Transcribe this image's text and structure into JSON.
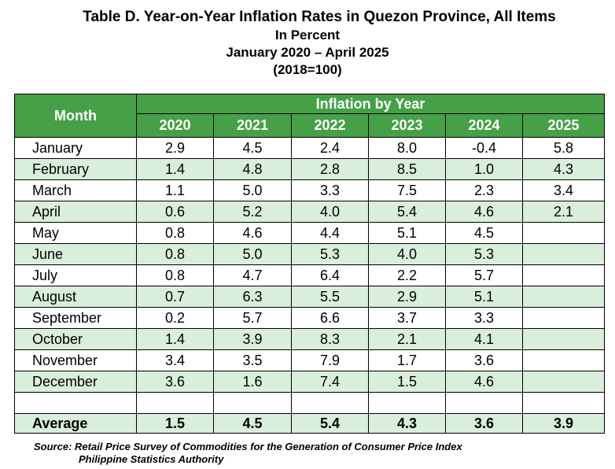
{
  "title": {
    "line1": "Table D. Year-on-Year Inflation Rates in Quezon Province, All Items",
    "line2": "In Percent",
    "line3": "January 2020 – April 2025",
    "line4": "(2018=100)"
  },
  "table": {
    "month_header": "Month",
    "group_header": "Inflation by Year",
    "years": [
      "2020",
      "2021",
      "2022",
      "2023",
      "2024",
      "2025"
    ],
    "rows": [
      {
        "month": "January",
        "values": [
          "2.9",
          "4.5",
          "2.4",
          "8.0",
          "-0.4",
          "5.8"
        ]
      },
      {
        "month": "February",
        "values": [
          "1.4",
          "4.8",
          "2.8",
          "8.5",
          "1.0",
          "4.3"
        ]
      },
      {
        "month": "March",
        "values": [
          "1.1",
          "5.0",
          "3.3",
          "7.5",
          "2.3",
          "3.4"
        ]
      },
      {
        "month": "April",
        "values": [
          "0.6",
          "5.2",
          "4.0",
          "5.4",
          "4.6",
          "2.1"
        ]
      },
      {
        "month": "May",
        "values": [
          "0.8",
          "4.6",
          "4.4",
          "5.1",
          "4.5",
          ""
        ]
      },
      {
        "month": "June",
        "values": [
          "0.8",
          "5.0",
          "5.3",
          "4.0",
          "5.3",
          ""
        ]
      },
      {
        "month": "July",
        "values": [
          "0.8",
          "4.7",
          "6.4",
          "2.2",
          "5.7",
          ""
        ]
      },
      {
        "month": "August",
        "values": [
          "0.7",
          "6.3",
          "5.5",
          "2.9",
          "5.1",
          ""
        ]
      },
      {
        "month": "September",
        "values": [
          "0.2",
          "5.7",
          "6.6",
          "3.7",
          "3.3",
          ""
        ]
      },
      {
        "month": "October",
        "values": [
          "1.4",
          "3.9",
          "8.3",
          "2.1",
          "4.1",
          ""
        ]
      },
      {
        "month": "November",
        "values": [
          "3.4",
          "3.5",
          "7.9",
          "1.7",
          "3.6",
          ""
        ]
      },
      {
        "month": "December",
        "values": [
          "3.6",
          "1.6",
          "7.4",
          "1.5",
          "4.6",
          ""
        ]
      }
    ],
    "average": {
      "label": "Average",
      "values": [
        "1.5",
        "4.5",
        "5.4",
        "4.3",
        "3.6",
        "3.9"
      ]
    }
  },
  "source": {
    "line1": "Source: Retail Price Survey of Commodities for the Generation of Consumer Price Index",
    "line2": "Philippine Statistics Authority"
  },
  "colors": {
    "header_green": "#46a047",
    "row_alt": "#d9eedb"
  }
}
